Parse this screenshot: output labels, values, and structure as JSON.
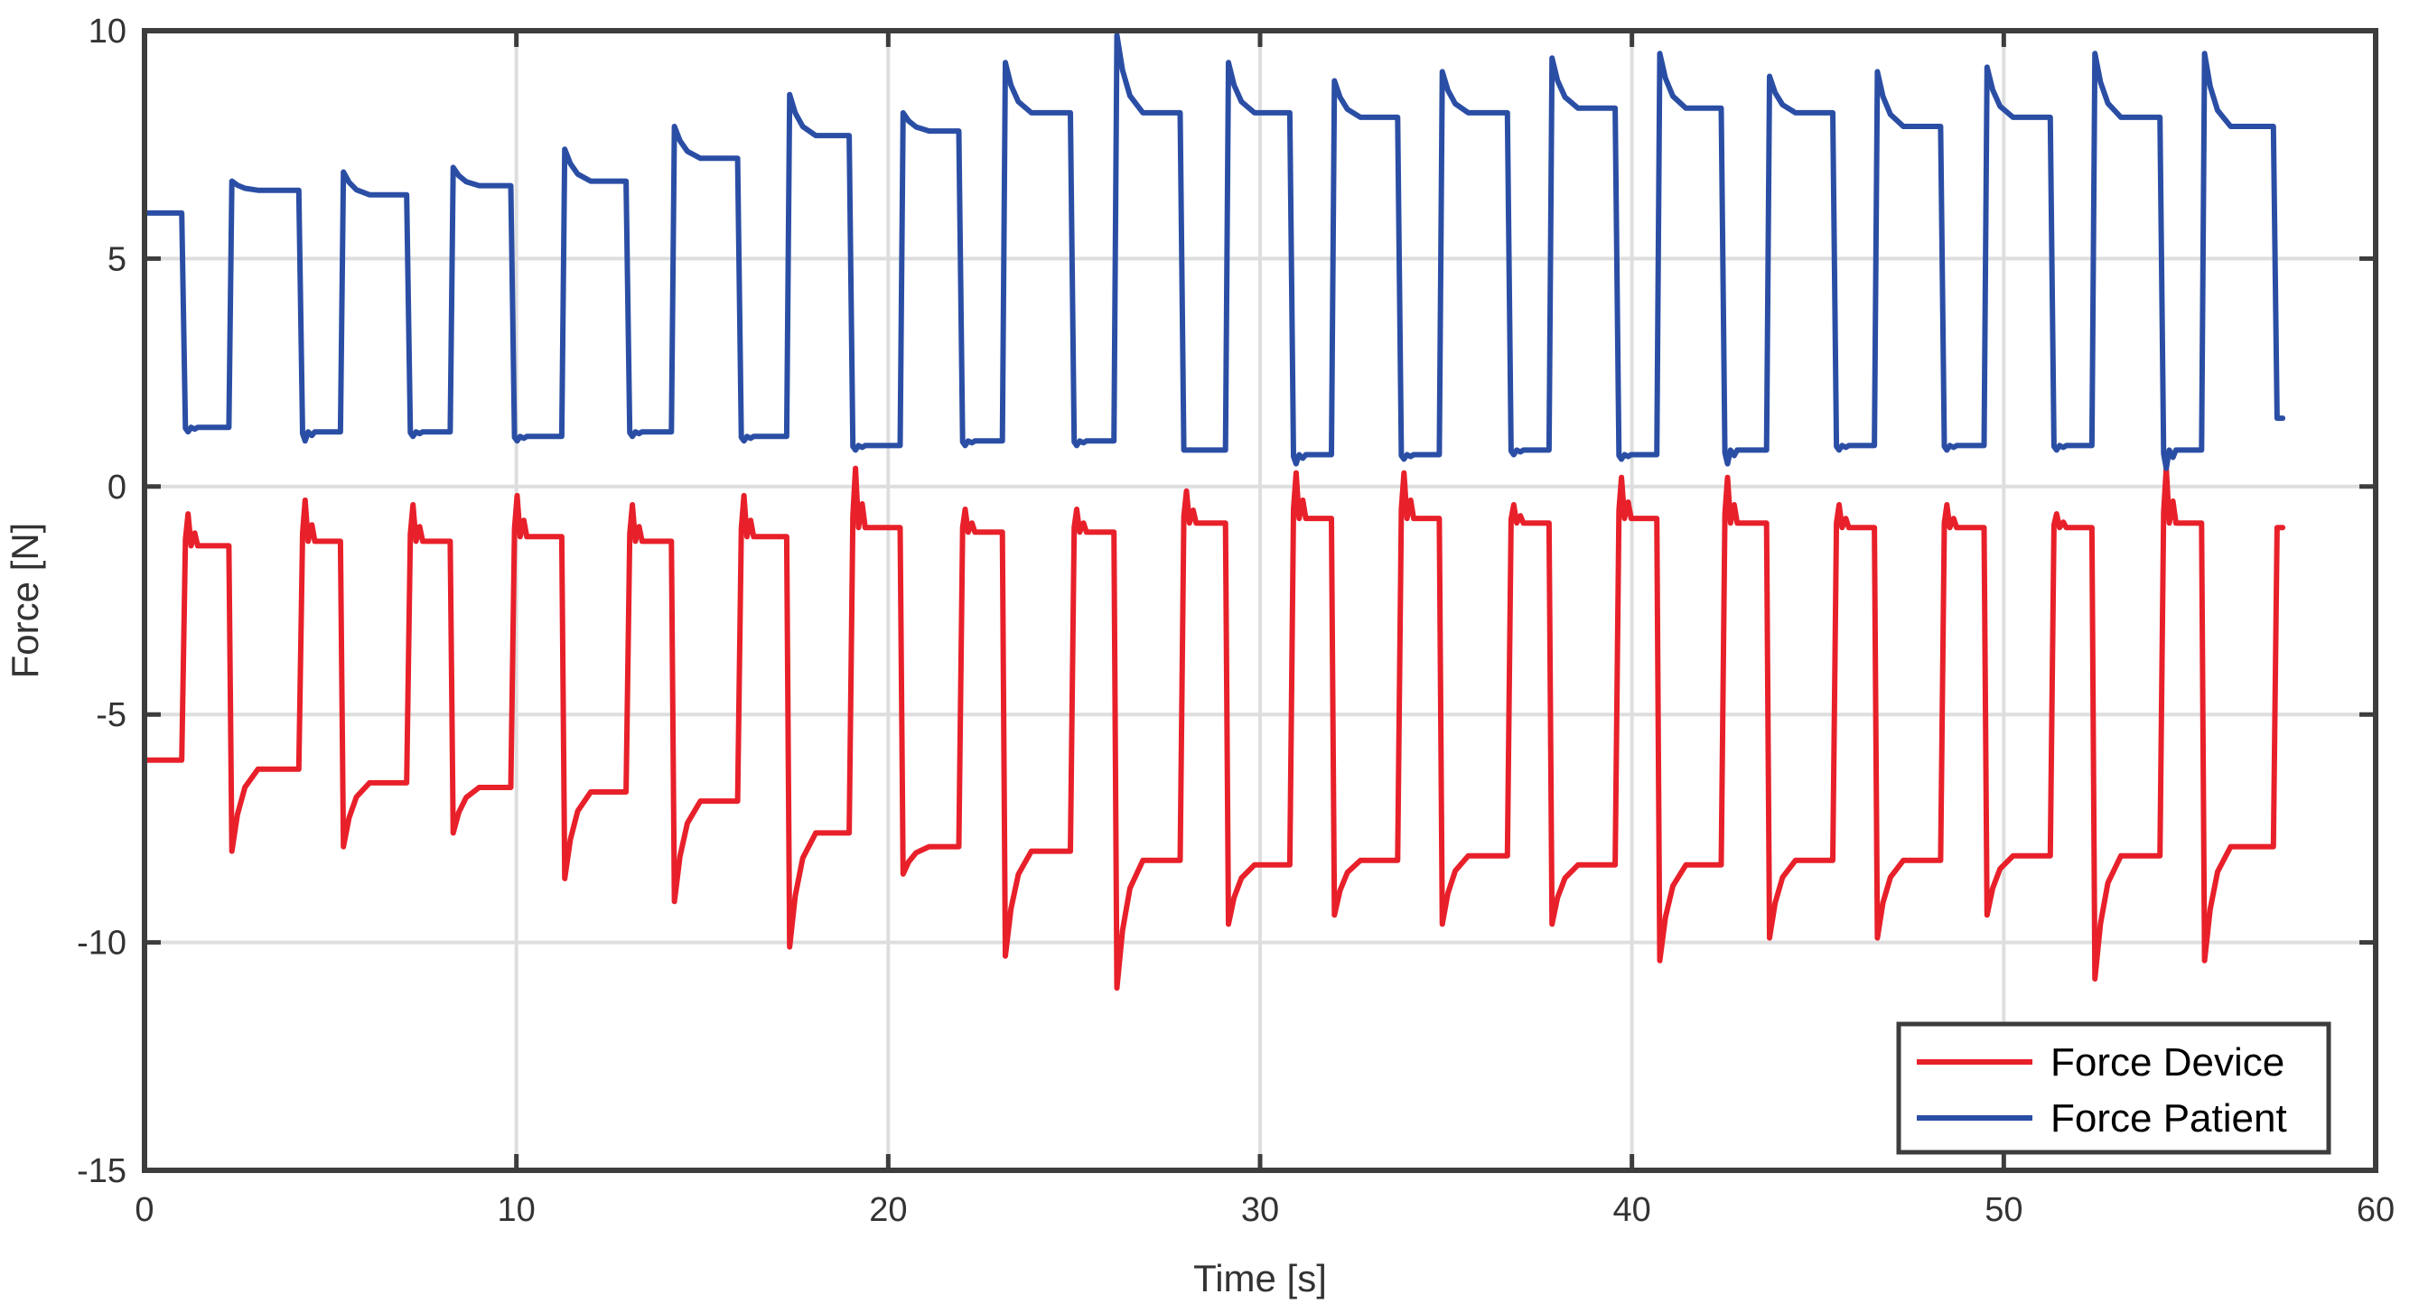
{
  "chart_data": {
    "type": "line",
    "title": "",
    "xlabel": "Time [s]",
    "ylabel": "Force [N]",
    "xlim": [
      0,
      60
    ],
    "ylim": [
      -15,
      10
    ],
    "xticks": [
      0,
      10,
      20,
      30,
      40,
      50,
      60
    ],
    "yticks": [
      10,
      5,
      0,
      -5,
      -10,
      -15
    ],
    "grid": true,
    "legend_position": "bottom-right",
    "series": [
      {
        "name": "Force Device",
        "color": "#e8202a",
        "baseline": -6.0,
        "cycles": [
          {
            "rise": 1.05,
            "peak": -0.6,
            "plateau": -1.3,
            "fall": 2.35,
            "dip": -8.0,
            "settle": -6.2
          },
          {
            "rise": 4.2,
            "peak": -0.3,
            "plateau": -1.2,
            "fall": 5.35,
            "dip": -7.9,
            "settle": -6.5
          },
          {
            "rise": 7.1,
            "peak": -0.4,
            "plateau": -1.2,
            "fall": 8.3,
            "dip": -7.6,
            "settle": -6.6
          },
          {
            "rise": 9.9,
            "peak": -0.2,
            "plateau": -1.1,
            "fall": 11.3,
            "dip": -8.6,
            "settle": -6.7
          },
          {
            "rise": 13.0,
            "peak": -0.4,
            "plateau": -1.2,
            "fall": 14.25,
            "dip": -9.1,
            "settle": -6.9
          },
          {
            "rise": 16.0,
            "peak": -0.2,
            "plateau": -1.1,
            "fall": 17.35,
            "dip": -10.1,
            "settle": -7.6
          },
          {
            "rise": 19.0,
            "peak": 0.4,
            "plateau": -0.9,
            "fall": 20.4,
            "dip": -8.5,
            "settle": -7.9
          },
          {
            "rise": 21.95,
            "peak": -0.5,
            "plateau": -1.0,
            "fall": 23.15,
            "dip": -10.3,
            "settle": -8.0
          },
          {
            "rise": 24.95,
            "peak": -0.5,
            "plateau": -1.0,
            "fall": 26.15,
            "dip": -11.0,
            "settle": -8.2
          },
          {
            "rise": 27.9,
            "peak": -0.1,
            "plateau": -0.8,
            "fall": 29.15,
            "dip": -9.6,
            "settle": -8.3
          },
          {
            "rise": 30.85,
            "peak": 0.3,
            "plateau": -0.7,
            "fall": 32.0,
            "dip": -9.4,
            "settle": -8.2
          },
          {
            "rise": 33.75,
            "peak": 0.3,
            "plateau": -0.7,
            "fall": 34.9,
            "dip": -9.6,
            "settle": -8.1
          },
          {
            "rise": 36.7,
            "peak": -0.4,
            "plateau": -0.8,
            "fall": 37.85,
            "dip": -9.6,
            "settle": -8.3
          },
          {
            "rise": 39.6,
            "peak": 0.2,
            "plateau": -0.7,
            "fall": 40.75,
            "dip": -10.4,
            "settle": -8.3
          },
          {
            "rise": 42.45,
            "peak": 0.2,
            "plateau": -0.8,
            "fall": 43.7,
            "dip": -9.9,
            "settle": -8.2
          },
          {
            "rise": 45.45,
            "peak": -0.4,
            "plateau": -0.9,
            "fall": 46.6,
            "dip": -9.9,
            "settle": -8.2
          },
          {
            "rise": 48.35,
            "peak": -0.4,
            "plateau": -0.9,
            "fall": 49.55,
            "dip": -9.4,
            "settle": -8.1
          },
          {
            "rise": 51.3,
            "peak": -0.6,
            "plateau": -0.9,
            "fall": 52.45,
            "dip": -10.8,
            "settle": -8.1
          },
          {
            "rise": 54.25,
            "peak": 0.4,
            "plateau": -0.8,
            "fall": 55.4,
            "dip": -10.4,
            "settle": -7.9
          },
          {
            "rise": 57.3,
            "peak": -0.9,
            "plateau": -0.9,
            "fall": 57.5,
            "dip": -0.9,
            "settle": -0.9
          }
        ]
      },
      {
        "name": "Force Patient",
        "color": "#2b4ea5",
        "baseline": 6.0,
        "cycles": [
          {
            "rise": 1.05,
            "peak": 1.2,
            "plateau": 1.3,
            "fall": 2.35,
            "dip": 6.7,
            "settle": 6.5
          },
          {
            "rise": 4.2,
            "peak": 1.0,
            "plateau": 1.2,
            "fall": 5.35,
            "dip": 6.9,
            "settle": 6.4
          },
          {
            "rise": 7.1,
            "peak": 1.1,
            "plateau": 1.2,
            "fall": 8.3,
            "dip": 7.0,
            "settle": 6.6
          },
          {
            "rise": 9.9,
            "peak": 1.0,
            "plateau": 1.1,
            "fall": 11.3,
            "dip": 7.4,
            "settle": 6.7
          },
          {
            "rise": 13.0,
            "peak": 1.1,
            "plateau": 1.2,
            "fall": 14.25,
            "dip": 7.9,
            "settle": 7.2
          },
          {
            "rise": 16.0,
            "peak": 1.0,
            "plateau": 1.1,
            "fall": 17.35,
            "dip": 8.6,
            "settle": 7.7
          },
          {
            "rise": 19.0,
            "peak": 0.8,
            "plateau": 0.9,
            "fall": 20.4,
            "dip": 8.2,
            "settle": 7.8
          },
          {
            "rise": 21.95,
            "peak": 0.9,
            "plateau": 1.0,
            "fall": 23.15,
            "dip": 9.3,
            "settle": 8.2
          },
          {
            "rise": 24.95,
            "peak": 0.9,
            "plateau": 1.0,
            "fall": 26.15,
            "dip": 9.9,
            "settle": 8.2
          },
          {
            "rise": 27.9,
            "peak": 0.8,
            "plateau": 0.8,
            "fall": 29.15,
            "dip": 9.3,
            "settle": 8.2
          },
          {
            "rise": 30.85,
            "peak": 0.5,
            "plateau": 0.7,
            "fall": 32.0,
            "dip": 8.9,
            "settle": 8.1
          },
          {
            "rise": 33.75,
            "peak": 0.6,
            "plateau": 0.7,
            "fall": 34.9,
            "dip": 9.1,
            "settle": 8.2
          },
          {
            "rise": 36.7,
            "peak": 0.7,
            "plateau": 0.8,
            "fall": 37.85,
            "dip": 9.4,
            "settle": 8.3
          },
          {
            "rise": 39.6,
            "peak": 0.6,
            "plateau": 0.7,
            "fall": 40.75,
            "dip": 9.5,
            "settle": 8.3
          },
          {
            "rise": 42.45,
            "peak": 0.5,
            "plateau": 0.8,
            "fall": 43.7,
            "dip": 9.0,
            "settle": 8.2
          },
          {
            "rise": 45.45,
            "peak": 0.8,
            "plateau": 0.9,
            "fall": 46.6,
            "dip": 9.1,
            "settle": 7.9
          },
          {
            "rise": 48.35,
            "peak": 0.8,
            "plateau": 0.9,
            "fall": 49.55,
            "dip": 9.2,
            "settle": 8.1
          },
          {
            "rise": 51.3,
            "peak": 0.8,
            "plateau": 0.9,
            "fall": 52.45,
            "dip": 9.5,
            "settle": 8.1
          },
          {
            "rise": 54.25,
            "peak": 0.4,
            "plateau": 0.8,
            "fall": 55.4,
            "dip": 9.5,
            "settle": 7.9
          },
          {
            "rise": 57.3,
            "peak": 1.5,
            "plateau": 1.5,
            "fall": 57.5,
            "dip": 1.5,
            "settle": 1.5
          }
        ]
      }
    ]
  }
}
